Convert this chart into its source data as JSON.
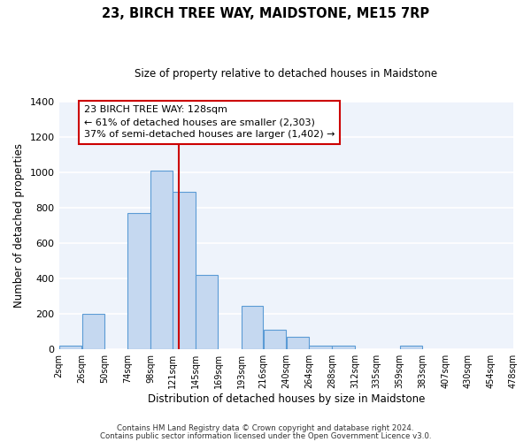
{
  "title": "23, BIRCH TREE WAY, MAIDSTONE, ME15 7RP",
  "subtitle": "Size of property relative to detached houses in Maidstone",
  "xlabel": "Distribution of detached houses by size in Maidstone",
  "ylabel": "Number of detached properties",
  "bar_left_edges": [
    2,
    26,
    50,
    74,
    98,
    121,
    145,
    169,
    193,
    216,
    240,
    264,
    288,
    312,
    335,
    359,
    383,
    407,
    430,
    454
  ],
  "bar_widths": [
    24,
    24,
    24,
    24,
    23,
    24,
    24,
    24,
    23,
    24,
    24,
    24,
    24,
    23,
    24,
    24,
    24,
    23,
    24,
    24
  ],
  "bar_heights": [
    20,
    200,
    0,
    770,
    1010,
    890,
    420,
    0,
    245,
    110,
    70,
    20,
    20,
    0,
    0,
    20,
    0,
    0,
    0,
    0
  ],
  "bar_color": "#c5d8f0",
  "bar_edge_color": "#5b9bd5",
  "x_tick_labels": [
    "2sqm",
    "26sqm",
    "50sqm",
    "74sqm",
    "98sqm",
    "121sqm",
    "145sqm",
    "169sqm",
    "193sqm",
    "216sqm",
    "240sqm",
    "264sqm",
    "288sqm",
    "312sqm",
    "335sqm",
    "359sqm",
    "383sqm",
    "407sqm",
    "430sqm",
    "454sqm",
    "478sqm"
  ],
  "x_tick_positions": [
    2,
    26,
    50,
    74,
    98,
    121,
    145,
    169,
    193,
    216,
    240,
    264,
    288,
    312,
    335,
    359,
    383,
    407,
    430,
    454,
    478
  ],
  "ylim": [
    0,
    1400
  ],
  "xlim": [
    2,
    478
  ],
  "yticks": [
    0,
    200,
    400,
    600,
    800,
    1000,
    1200,
    1400
  ],
  "vline_x": 128,
  "vline_color": "#cc0000",
  "annotation_lines": [
    "23 BIRCH TREE WAY: 128sqm",
    "← 61% of detached houses are smaller (2,303)",
    "37% of semi-detached houses are larger (1,402) →"
  ],
  "footer1": "Contains HM Land Registry data © Crown copyright and database right 2024.",
  "footer2": "Contains public sector information licensed under the Open Government Licence v3.0.",
  "background_color": "#eef3fb",
  "grid_color": "#ffffff",
  "fig_background": "#ffffff"
}
